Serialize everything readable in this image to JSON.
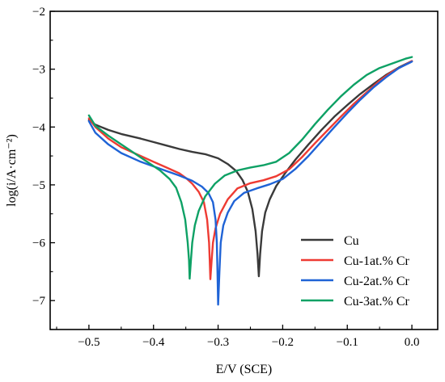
{
  "chart_data": {
    "type": "line",
    "title": "",
    "xlabel": "E/V (SCE)",
    "ylabel": "log(i/A·cm⁻²)",
    "xlim": [
      -0.56,
      0.04
    ],
    "ylim": [
      -7.5,
      -2.0
    ],
    "xticks": [
      -0.5,
      -0.4,
      -0.3,
      -0.2,
      -0.1,
      0.0
    ],
    "xtick_labels": [
      "−0.5",
      "−0.4",
      "−0.3",
      "−0.2",
      "−0.1",
      "0.0"
    ],
    "yticks": [
      -7,
      -6,
      -5,
      -4,
      -3,
      -2
    ],
    "ytick_labels": [
      "−7",
      "−6",
      "−5",
      "−4",
      "−3",
      "−2"
    ],
    "grid": false,
    "legend_position": "bottom-right",
    "series": [
      {
        "name": "Cu",
        "color": "#3a3a3a",
        "points": [
          [
            -0.5,
            -3.88
          ],
          [
            -0.49,
            -3.96
          ],
          [
            -0.47,
            -4.05
          ],
          [
            -0.45,
            -4.12
          ],
          [
            -0.42,
            -4.2
          ],
          [
            -0.4,
            -4.26
          ],
          [
            -0.38,
            -4.32
          ],
          [
            -0.36,
            -4.38
          ],
          [
            -0.34,
            -4.43
          ],
          [
            -0.32,
            -4.47
          ],
          [
            -0.3,
            -4.54
          ],
          [
            -0.285,
            -4.64
          ],
          [
            -0.272,
            -4.76
          ],
          [
            -0.262,
            -4.92
          ],
          [
            -0.254,
            -5.12
          ],
          [
            -0.247,
            -5.42
          ],
          [
            -0.242,
            -5.8
          ],
          [
            -0.239,
            -6.2
          ],
          [
            -0.237,
            -6.58
          ],
          [
            -0.235,
            -6.2
          ],
          [
            -0.232,
            -5.8
          ],
          [
            -0.227,
            -5.48
          ],
          [
            -0.22,
            -5.25
          ],
          [
            -0.21,
            -5.02
          ],
          [
            -0.195,
            -4.78
          ],
          [
            -0.18,
            -4.56
          ],
          [
            -0.16,
            -4.3
          ],
          [
            -0.14,
            -4.05
          ],
          [
            -0.12,
            -3.82
          ],
          [
            -0.1,
            -3.62
          ],
          [
            -0.08,
            -3.43
          ],
          [
            -0.06,
            -3.26
          ],
          [
            -0.04,
            -3.1
          ],
          [
            -0.02,
            -2.97
          ],
          [
            0.0,
            -2.86
          ]
        ]
      },
      {
        "name": "Cu-1at.% Cr",
        "color": "#ee3b33",
        "points": [
          [
            -0.5,
            -3.85
          ],
          [
            -0.49,
            -4.0
          ],
          [
            -0.47,
            -4.2
          ],
          [
            -0.45,
            -4.35
          ],
          [
            -0.42,
            -4.5
          ],
          [
            -0.4,
            -4.6
          ],
          [
            -0.38,
            -4.7
          ],
          [
            -0.36,
            -4.8
          ],
          [
            -0.35,
            -4.88
          ],
          [
            -0.34,
            -4.98
          ],
          [
            -0.33,
            -5.12
          ],
          [
            -0.322,
            -5.3
          ],
          [
            -0.317,
            -5.6
          ],
          [
            -0.314,
            -6.0
          ],
          [
            -0.313,
            -6.3
          ],
          [
            -0.312,
            -6.63
          ],
          [
            -0.31,
            -6.3
          ],
          [
            -0.308,
            -6.0
          ],
          [
            -0.304,
            -5.75
          ],
          [
            -0.297,
            -5.5
          ],
          [
            -0.285,
            -5.25
          ],
          [
            -0.27,
            -5.06
          ],
          [
            -0.25,
            -4.97
          ],
          [
            -0.23,
            -4.92
          ],
          [
            -0.21,
            -4.85
          ],
          [
            -0.19,
            -4.73
          ],
          [
            -0.17,
            -4.52
          ],
          [
            -0.15,
            -4.28
          ],
          [
            -0.13,
            -4.05
          ],
          [
            -0.11,
            -3.82
          ],
          [
            -0.09,
            -3.6
          ],
          [
            -0.07,
            -3.4
          ],
          [
            -0.05,
            -3.2
          ],
          [
            -0.03,
            -3.04
          ],
          [
            -0.01,
            -2.92
          ],
          [
            0.0,
            -2.86
          ]
        ]
      },
      {
        "name": "Cu-2at.% Cr",
        "color": "#1f63d6",
        "points": [
          [
            -0.5,
            -3.9
          ],
          [
            -0.49,
            -4.1
          ],
          [
            -0.47,
            -4.3
          ],
          [
            -0.45,
            -4.45
          ],
          [
            -0.42,
            -4.6
          ],
          [
            -0.4,
            -4.68
          ],
          [
            -0.38,
            -4.76
          ],
          [
            -0.36,
            -4.84
          ],
          [
            -0.34,
            -4.93
          ],
          [
            -0.325,
            -5.03
          ],
          [
            -0.315,
            -5.14
          ],
          [
            -0.308,
            -5.3
          ],
          [
            -0.304,
            -5.6
          ],
          [
            -0.302,
            -6.0
          ],
          [
            -0.301,
            -6.5
          ],
          [
            -0.3,
            -7.07
          ],
          [
            -0.298,
            -6.5
          ],
          [
            -0.296,
            -6.0
          ],
          [
            -0.292,
            -5.7
          ],
          [
            -0.285,
            -5.48
          ],
          [
            -0.275,
            -5.28
          ],
          [
            -0.26,
            -5.14
          ],
          [
            -0.24,
            -5.06
          ],
          [
            -0.22,
            -4.99
          ],
          [
            -0.2,
            -4.9
          ],
          [
            -0.18,
            -4.72
          ],
          [
            -0.16,
            -4.5
          ],
          [
            -0.14,
            -4.25
          ],
          [
            -0.12,
            -4.0
          ],
          [
            -0.1,
            -3.76
          ],
          [
            -0.08,
            -3.53
          ],
          [
            -0.06,
            -3.32
          ],
          [
            -0.04,
            -3.14
          ],
          [
            -0.02,
            -2.98
          ],
          [
            0.0,
            -2.87
          ]
        ]
      },
      {
        "name": "Cu-3at.% Cr",
        "color": "#0ea165",
        "points": [
          [
            -0.5,
            -3.8
          ],
          [
            -0.49,
            -3.98
          ],
          [
            -0.47,
            -4.15
          ],
          [
            -0.45,
            -4.3
          ],
          [
            -0.43,
            -4.45
          ],
          [
            -0.41,
            -4.6
          ],
          [
            -0.39,
            -4.75
          ],
          [
            -0.375,
            -4.9
          ],
          [
            -0.365,
            -5.05
          ],
          [
            -0.357,
            -5.3
          ],
          [
            -0.351,
            -5.6
          ],
          [
            -0.347,
            -6.0
          ],
          [
            -0.345,
            -6.3
          ],
          [
            -0.344,
            -6.62
          ],
          [
            -0.342,
            -6.3
          ],
          [
            -0.34,
            -6.0
          ],
          [
            -0.336,
            -5.7
          ],
          [
            -0.33,
            -5.45
          ],
          [
            -0.32,
            -5.2
          ],
          [
            -0.305,
            -4.98
          ],
          [
            -0.29,
            -4.84
          ],
          [
            -0.27,
            -4.75
          ],
          [
            -0.25,
            -4.7
          ],
          [
            -0.23,
            -4.66
          ],
          [
            -0.21,
            -4.6
          ],
          [
            -0.19,
            -4.45
          ],
          [
            -0.17,
            -4.22
          ],
          [
            -0.15,
            -3.95
          ],
          [
            -0.13,
            -3.7
          ],
          [
            -0.11,
            -3.47
          ],
          [
            -0.09,
            -3.27
          ],
          [
            -0.07,
            -3.1
          ],
          [
            -0.05,
            -2.98
          ],
          [
            -0.03,
            -2.9
          ],
          [
            -0.01,
            -2.82
          ],
          [
            0.0,
            -2.79
          ]
        ]
      }
    ]
  }
}
